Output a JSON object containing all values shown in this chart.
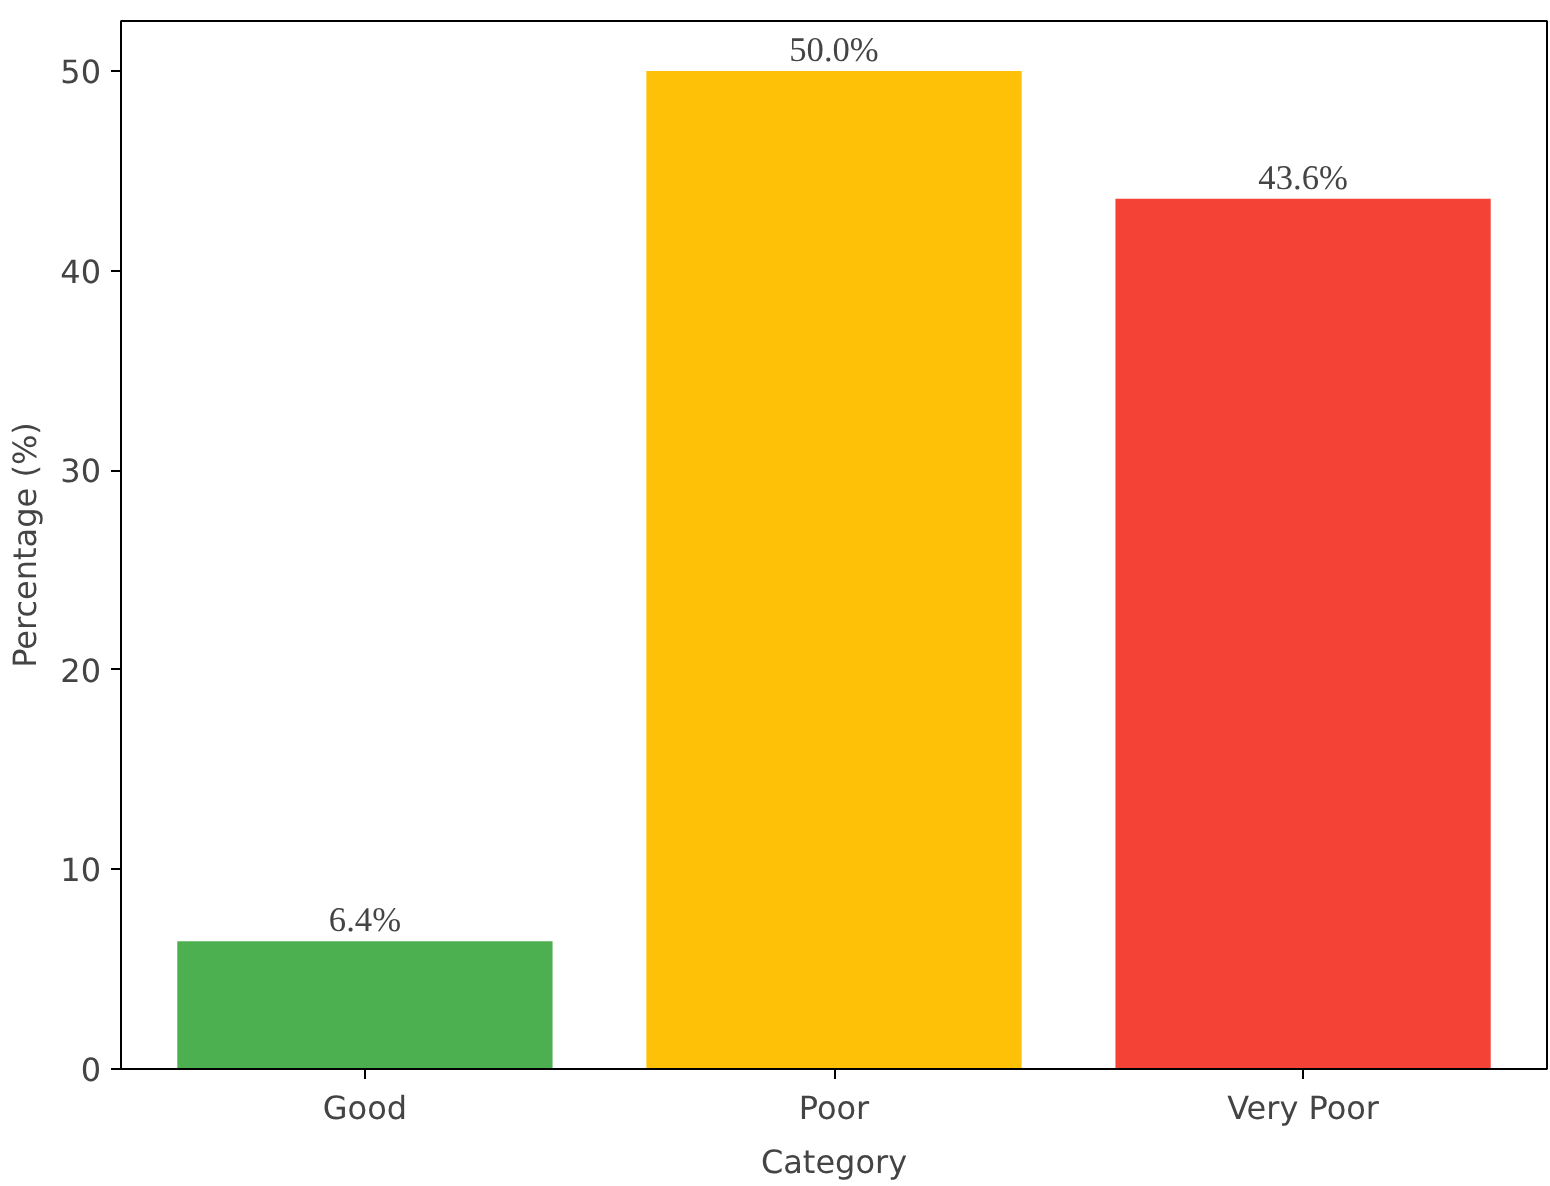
{
  "chart_data": {
    "type": "bar",
    "xlabel": "Category",
    "ylabel": "Percentage (%)",
    "categories": [
      "Good",
      "Poor",
      "Very Poor"
    ],
    "values": [
      6.4,
      50.0,
      43.6
    ],
    "colors": [
      "#4caf50",
      "#ffc107",
      "#f44336"
    ],
    "value_labels": [
      "6.4%",
      "50.0%",
      "43.6%"
    ],
    "ylim": [
      0,
      52.5
    ],
    "yticks": [
      0,
      10,
      20,
      30,
      40,
      50
    ],
    "grid": false
  }
}
